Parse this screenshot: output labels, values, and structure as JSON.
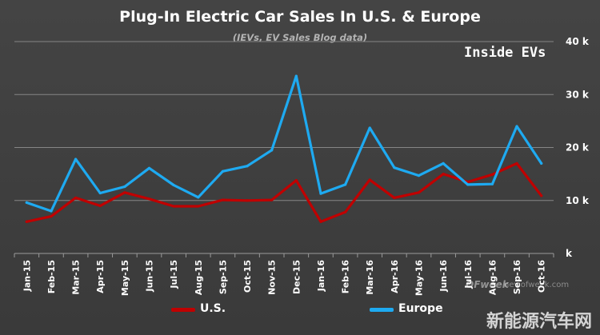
{
  "chart_data": {
    "type": "line",
    "title": "Plug-In Electric Car Sales In U.S. & Europe",
    "subtitle": "(IEVs, EV Sales Blog data)",
    "watermark": "Inside EVs",
    "categories": [
      "Jan-15",
      "Feb-15",
      "Mar-15",
      "Apr-15",
      "May-15",
      "Jun-15",
      "Jul-15",
      "Aug-15",
      "Sep-15",
      "Oct-15",
      "Nov-15",
      "Dec-15",
      "Jan-16",
      "Feb-16",
      "Mar-16",
      "Apr-16",
      "May-16",
      "Jun-16",
      "Jul-16",
      "Aug-16",
      "Sep-16",
      "Oct-16"
    ],
    "ylim": [
      0,
      40000
    ],
    "yticks": [
      0,
      10000,
      20000,
      30000,
      40000
    ],
    "ytick_labels": [
      "k",
      "10 k",
      "20 k",
      "30 k",
      "40 k"
    ],
    "y_axis_side": "right",
    "grid": true,
    "legend_position": "bottom",
    "series": [
      {
        "name": "U.S.",
        "color": "#c00000",
        "values": [
          6000,
          7000,
          10500,
          9000,
          11500,
          10300,
          8900,
          8900,
          10100,
          10000,
          10100,
          13800,
          6000,
          7800,
          13900,
          10500,
          11500,
          15000,
          13500,
          14900,
          17000,
          10900
        ]
      },
      {
        "name": "Europe",
        "color": "#1eaaf1",
        "values": [
          9600,
          8000,
          17800,
          11400,
          12600,
          16100,
          12900,
          10600,
          15500,
          16500,
          19500,
          33500,
          11300,
          13000,
          23700,
          16200,
          14700,
          17000,
          13000,
          13100,
          24000,
          17000
        ]
      }
    ]
  },
  "branding": {
    "cn_site": "新能源汽车网",
    "logo": "OFweek",
    "url": "nev.ofweek.com"
  }
}
